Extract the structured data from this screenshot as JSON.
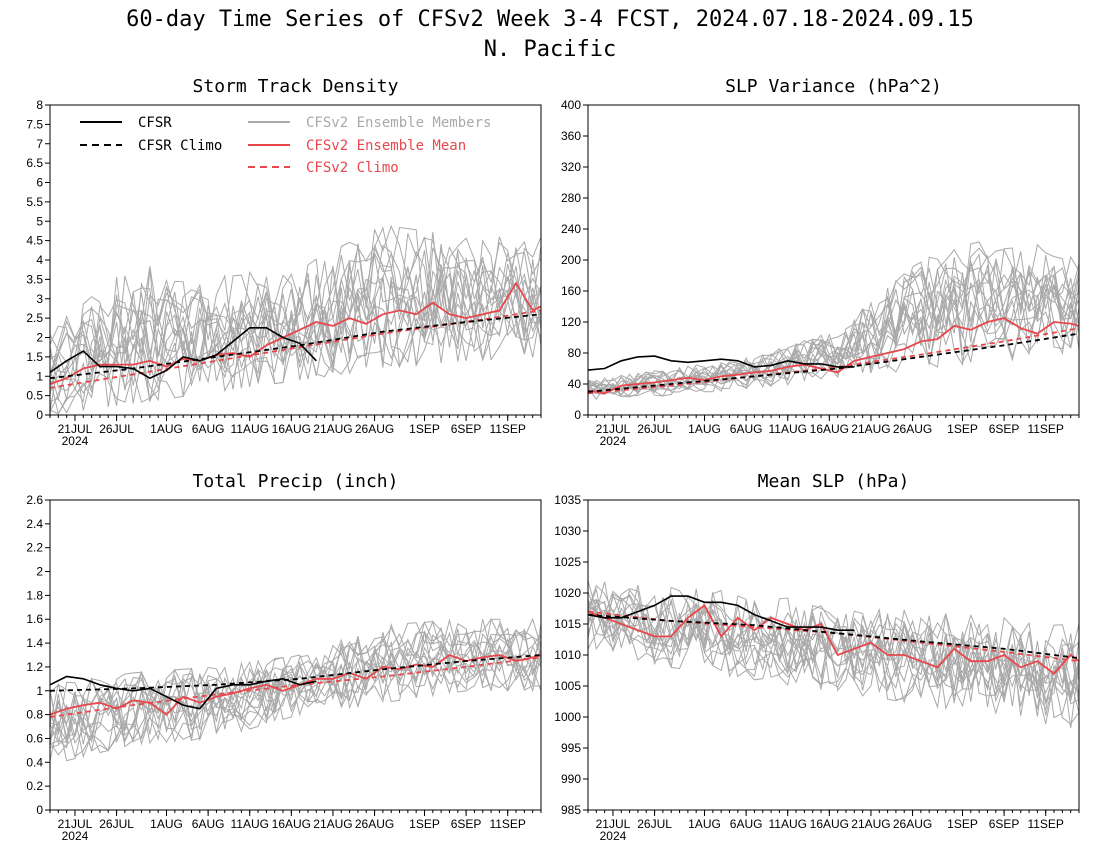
{
  "figure": {
    "title_line1": "60-day Time Series of CFSv2 Week 3-4 FCST, 2024.07.18-2024.09.15",
    "title_line2": "N. Pacific"
  },
  "legend": {
    "cfsr": "CFSR",
    "cfsr_climo": "CFSR Climo",
    "members": "CFSv2 Ensemble Members",
    "ens_mean": "CFSv2 Ensemble Mean",
    "cfsv2_climo": "CFSv2 Climo"
  },
  "colors": {
    "cfsr": "#000000",
    "cfsr_climo": "#000000",
    "members": "#a9a9a9",
    "ens_mean": "#e8474c",
    "cfsv2_climo": "#e8474c"
  },
  "x_axis": {
    "tick_labels": [
      "21JUL",
      "26JUL",
      "1AUG",
      "6AUG",
      "11AUG",
      "16AUG",
      "21AUG",
      "26AUG",
      "1SEP",
      "6SEP",
      "11SEP"
    ],
    "tick_days": [
      3,
      8,
      14,
      19,
      24,
      29,
      34,
      39,
      45,
      50,
      55
    ],
    "year_label": "2024",
    "range_days": [
      0,
      59
    ]
  },
  "chart_data": [
    {
      "type": "line",
      "title": "Storm Track Density",
      "ylim": [
        0,
        8
      ],
      "yticks": [
        "0",
        "0.5",
        "1",
        "1.5",
        "2",
        "2.5",
        "3",
        "3.5",
        "4",
        "4.5",
        "5",
        "5.5",
        "6",
        "6.5",
        "7",
        "7.5",
        "8"
      ],
      "series": [
        {
          "name": "CFSR",
          "x": [
            0,
            2,
            4,
            6,
            8,
            10,
            12,
            14,
            16,
            18,
            20,
            22,
            24,
            26,
            28,
            30,
            32
          ],
          "y": [
            1.1,
            1.4,
            1.65,
            1.25,
            1.25,
            1.2,
            0.95,
            1.15,
            1.5,
            1.4,
            1.55,
            1.9,
            2.25,
            2.25,
            2.0,
            1.85,
            1.4
          ]
        },
        {
          "name": "CFSR Climo",
          "x": [
            0,
            10,
            20,
            30,
            40,
            50,
            59
          ],
          "y": [
            0.95,
            1.2,
            1.5,
            1.8,
            2.15,
            2.4,
            2.6
          ]
        },
        {
          "name": "CFSv2 Ensemble Mean",
          "x": [
            0,
            2,
            4,
            6,
            8,
            10,
            12,
            14,
            16,
            18,
            20,
            22,
            24,
            26,
            28,
            30,
            32,
            34,
            36,
            38,
            40,
            42,
            44,
            46,
            48,
            50,
            52,
            54,
            56,
            58,
            59
          ],
          "y": [
            0.8,
            0.95,
            1.2,
            1.3,
            1.3,
            1.3,
            1.4,
            1.25,
            1.45,
            1.4,
            1.55,
            1.6,
            1.5,
            1.8,
            2.0,
            2.2,
            2.4,
            2.3,
            2.5,
            2.35,
            2.6,
            2.7,
            2.6,
            2.9,
            2.6,
            2.5,
            2.6,
            2.7,
            3.4,
            2.7,
            2.8
          ]
        },
        {
          "name": "CFSv2 Climo",
          "x": [
            0,
            10,
            20,
            30,
            40,
            50,
            59
          ],
          "y": [
            0.7,
            1.05,
            1.4,
            1.75,
            2.1,
            2.4,
            2.7
          ]
        }
      ],
      "members_envelope": {
        "x": [
          0,
          10,
          20,
          30,
          40,
          50,
          59
        ],
        "ymin": [
          0.0,
          0.3,
          0.6,
          0.9,
          1.2,
          1.4,
          1.5
        ],
        "ymax": [
          2.2,
          3.9,
          3.6,
          3.8,
          4.9,
          4.6,
          4.6
        ]
      }
    },
    {
      "type": "line",
      "title": "SLP Variance (hPa^2)",
      "ylim": [
        0,
        400
      ],
      "yticks": [
        "0",
        "40",
        "80",
        "120",
        "160",
        "200",
        "240",
        "280",
        "320",
        "360",
        "400"
      ],
      "series": [
        {
          "name": "CFSR",
          "x": [
            0,
            2,
            4,
            6,
            8,
            10,
            12,
            14,
            16,
            18,
            20,
            22,
            24,
            26,
            28,
            30,
            32
          ],
          "y": [
            58,
            60,
            70,
            75,
            76,
            70,
            68,
            70,
            72,
            70,
            62,
            64,
            70,
            66,
            66,
            62,
            62
          ]
        },
        {
          "name": "CFSR Climo",
          "x": [
            0,
            10,
            20,
            30,
            40,
            50,
            59
          ],
          "y": [
            30,
            40,
            50,
            60,
            75,
            90,
            105
          ]
        },
        {
          "name": "CFSv2 Ensemble Mean",
          "x": [
            0,
            2,
            4,
            6,
            8,
            10,
            12,
            14,
            16,
            18,
            20,
            22,
            24,
            26,
            28,
            30,
            32,
            34,
            36,
            38,
            40,
            42,
            44,
            46,
            48,
            50,
            52,
            54,
            56,
            58,
            59
          ],
          "y": [
            32,
            28,
            38,
            40,
            42,
            45,
            48,
            45,
            50,
            52,
            55,
            57,
            62,
            65,
            60,
            55,
            70,
            75,
            80,
            85,
            95,
            98,
            115,
            110,
            120,
            125,
            112,
            105,
            120,
            118,
            115
          ]
        },
        {
          "name": "CFSv2 Climo",
          "x": [
            0,
            10,
            20,
            30,
            40,
            50,
            59
          ],
          "y": [
            28,
            38,
            50,
            62,
            78,
            95,
            112
          ]
        }
      ],
      "members_envelope": {
        "x": [
          0,
          10,
          20,
          30,
          40,
          50,
          59
        ],
        "ymin": [
          20,
          25,
          35,
          45,
          60,
          70,
          80
        ],
        "ymax": [
          45,
          60,
          75,
          110,
          200,
          235,
          200
        ]
      }
    },
    {
      "type": "line",
      "title": "Total Precip (inch)",
      "ylim": [
        0,
        2.6
      ],
      "yticks": [
        "0",
        "0.2",
        "0.4",
        "0.6",
        "0.8",
        "1",
        "1.2",
        "1.4",
        "1.6",
        "1.8",
        "2",
        "2.2",
        "2.4",
        "2.6"
      ],
      "series": [
        {
          "name": "CFSR",
          "x": [
            0,
            2,
            4,
            6,
            8,
            10,
            12,
            14,
            16,
            18,
            20,
            22,
            24,
            26,
            28,
            30,
            32
          ],
          "y": [
            1.05,
            1.12,
            1.1,
            1.05,
            1.02,
            1.0,
            1.02,
            0.95,
            0.88,
            0.85,
            1.02,
            1.05,
            1.05,
            1.08,
            1.1,
            1.05,
            1.08
          ]
        },
        {
          "name": "CFSR Climo",
          "x": [
            0,
            10,
            20,
            30,
            40,
            50,
            59
          ],
          "y": [
            1.0,
            1.02,
            1.05,
            1.1,
            1.18,
            1.25,
            1.3
          ]
        },
        {
          "name": "CFSv2 Ensemble Mean",
          "x": [
            0,
            2,
            4,
            6,
            8,
            10,
            12,
            14,
            16,
            18,
            20,
            22,
            24,
            26,
            28,
            30,
            32,
            34,
            36,
            38,
            40,
            42,
            44,
            46,
            48,
            50,
            52,
            54,
            56,
            58,
            59
          ],
          "y": [
            0.8,
            0.85,
            0.88,
            0.9,
            0.85,
            0.92,
            0.9,
            0.8,
            0.95,
            0.9,
            0.95,
            0.98,
            1.02,
            1.05,
            1.0,
            1.05,
            1.1,
            1.1,
            1.15,
            1.1,
            1.2,
            1.18,
            1.22,
            1.2,
            1.3,
            1.25,
            1.28,
            1.3,
            1.25,
            1.28,
            1.3
          ]
        },
        {
          "name": "CFSv2 Climo",
          "x": [
            0,
            10,
            20,
            30,
            40,
            50,
            59
          ],
          "y": [
            0.78,
            0.88,
            0.97,
            1.05,
            1.12,
            1.2,
            1.28
          ]
        }
      ],
      "members_envelope": {
        "x": [
          0,
          10,
          20,
          30,
          40,
          50,
          59
        ],
        "ymin": [
          0.38,
          0.55,
          0.6,
          0.8,
          0.9,
          1.0,
          1.0
        ],
        "ymax": [
          1.05,
          1.15,
          1.2,
          1.3,
          1.55,
          1.6,
          1.6
        ]
      }
    },
    {
      "type": "line",
      "title": "Mean SLP (hPa)",
      "ylim": [
        985,
        1035
      ],
      "yticks": [
        "985",
        "990",
        "995",
        "1000",
        "1005",
        "1010",
        "1015",
        "1020",
        "1025",
        "1030",
        "1035"
      ],
      "series": [
        {
          "name": "CFSR",
          "x": [
            0,
            2,
            4,
            6,
            8,
            10,
            12,
            14,
            16,
            18,
            20,
            22,
            24,
            26,
            28,
            30,
            32
          ],
          "y": [
            1016.5,
            1016,
            1016,
            1017,
            1018,
            1019.5,
            1019.5,
            1018.5,
            1018.5,
            1018,
            1016.5,
            1015.5,
            1014.5,
            1014.5,
            1014.5,
            1014,
            1014
          ]
        },
        {
          "name": "CFSR Climo",
          "x": [
            0,
            10,
            20,
            30,
            40,
            50,
            59
          ],
          "y": [
            1016.5,
            1015.5,
            1014.8,
            1013.5,
            1012.2,
            1011,
            1009.5
          ]
        },
        {
          "name": "CFSv2 Ensemble Mean",
          "x": [
            0,
            2,
            4,
            6,
            8,
            10,
            12,
            14,
            16,
            18,
            20,
            22,
            24,
            26,
            28,
            30,
            32,
            34,
            36,
            38,
            40,
            42,
            44,
            46,
            48,
            50,
            52,
            54,
            56,
            58,
            59
          ],
          "y": [
            1017,
            1016,
            1015,
            1014,
            1013,
            1013,
            1016,
            1018,
            1013,
            1016,
            1014,
            1016,
            1015,
            1014,
            1015,
            1010,
            1011,
            1012,
            1010,
            1010,
            1009,
            1008,
            1011,
            1009,
            1009,
            1010,
            1008,
            1009,
            1007,
            1010,
            1009
          ]
        },
        {
          "name": "CFSv2 Climo",
          "x": [
            0,
            10,
            20,
            30,
            40,
            50,
            59
          ],
          "y": [
            1017,
            1015.5,
            1014.5,
            1013.5,
            1012,
            1010.5,
            1009
          ]
        }
      ],
      "members_envelope": {
        "x": [
          0,
          10,
          20,
          30,
          40,
          50,
          59
        ],
        "ymin": [
          1011,
          1008,
          1006,
          1004,
          1002,
          1000,
          998
        ],
        "ymax": [
          1022,
          1021,
          1020,
          1018,
          1017,
          1016,
          1015
        ]
      }
    }
  ]
}
